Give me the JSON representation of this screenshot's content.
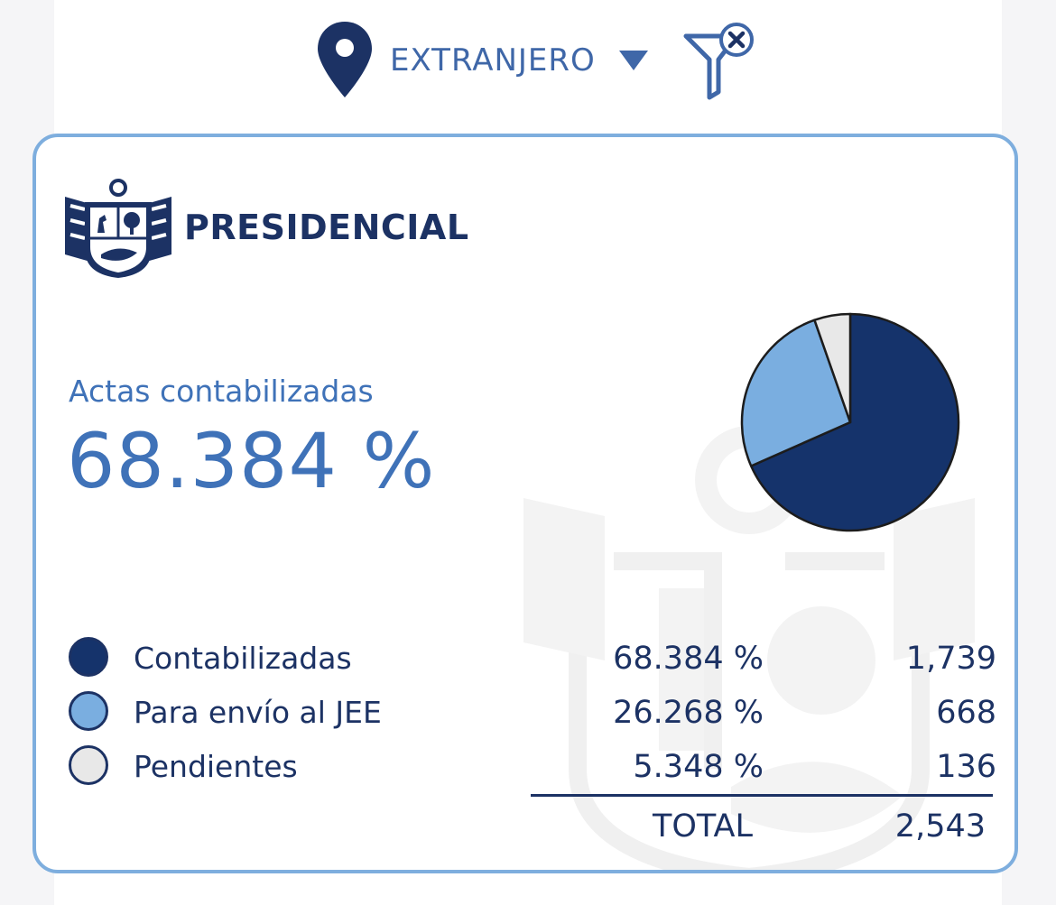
{
  "filter": {
    "region": "EXTRANJERO",
    "pin_icon": "map-pin-icon",
    "caret_icon": "caret-down-icon",
    "clear_icon": "clear-filter-icon"
  },
  "card": {
    "title": "PRESIDENCIAL",
    "emblem": "peru-coat-of-arms-emblem",
    "metric_label": "Actas contabilizadas",
    "metric_value": "68.384 %"
  },
  "legend": [
    {
      "label": "Contabilizadas",
      "pct": "68.384 %",
      "count": "1,739",
      "color": "#15336b"
    },
    {
      "label": "Para envío al JEE",
      "pct": "26.268 %",
      "count": "668",
      "color": "#7aaee0"
    },
    {
      "label": "Pendientes",
      "pct": "5.348 %",
      "count": "136",
      "color": "#e8e8e8"
    }
  ],
  "total": {
    "label": "TOTAL",
    "value": "2,543"
  },
  "colors": {
    "accent": "#3f72b8",
    "navy": "#1c3264",
    "border": "#7eaede"
  },
  "chart_data": {
    "type": "pie",
    "categories": [
      "Contabilizadas",
      "Para envío al JEE",
      "Pendientes"
    ],
    "values": [
      1739,
      668,
      136
    ],
    "percentages": [
      68.384,
      26.268,
      5.348
    ],
    "colors": [
      "#15336b",
      "#7aaee0",
      "#e8e8e8"
    ],
    "start_angle": "12 o'clock",
    "direction": "clockwise"
  }
}
